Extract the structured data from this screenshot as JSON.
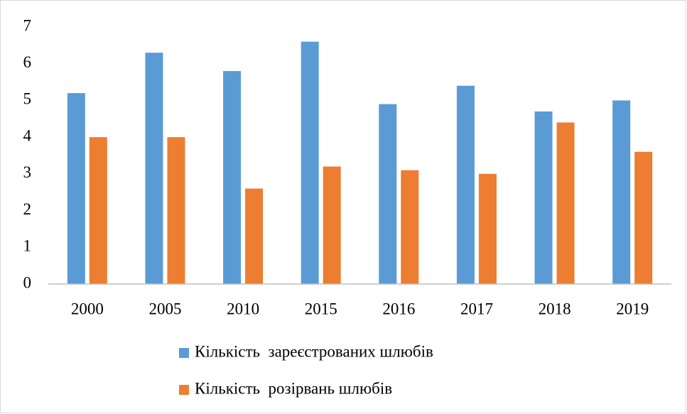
{
  "chart_data": {
    "type": "bar",
    "categories": [
      "2000",
      "2005",
      "2010",
      "2015",
      "2016",
      "2017",
      "2018",
      "2019"
    ],
    "series": [
      {
        "name": "Кількість  зареєстрованих шлюбів",
        "color": "#5b9bd5",
        "values": [
          5.2,
          6.3,
          5.8,
          6.6,
          4.9,
          5.4,
          4.7,
          5.0
        ]
      },
      {
        "name": "Кількість  розірвань шлюбів",
        "color": "#ed7d31",
        "values": [
          4.0,
          4.0,
          2.6,
          3.2,
          3.1,
          3.0,
          4.4,
          3.6
        ]
      }
    ],
    "ylim": [
      0,
      7
    ],
    "yticks": [
      0,
      1,
      2,
      3,
      4,
      5,
      6,
      7
    ],
    "grid": false,
    "legend": "bottom"
  }
}
